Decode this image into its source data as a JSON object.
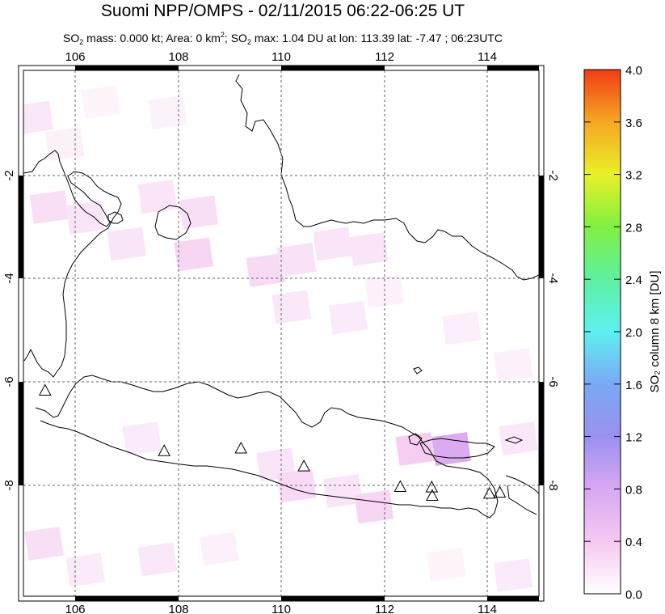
{
  "header": {
    "title": "Suomi NPP/OMPS - 02/11/2015 06:22-06:25 UT",
    "sub_a": "SO",
    "sub_b": "2",
    "sub_c": " mass: 0.000 kt; Area: 0 km",
    "sub_d": "2",
    "sub_e": "; SO",
    "sub_f": "2",
    "sub_g": " max: 1.04 DU at lon: 113.39 lat: -7.47 ; 06:23UTC"
  },
  "map": {
    "lon_range": [
      105,
      115
    ],
    "lat_range": [
      -10,
      0
    ],
    "lon_ticks": [
      "106",
      "108",
      "110",
      "112",
      "114"
    ],
    "lat_ticks_left": [
      "-2",
      "-4",
      "-6",
      "-8"
    ],
    "lat_ticks_right": [
      "-2",
      "-4",
      "-6",
      "-8"
    ],
    "volcanoes": [
      {
        "lon": 105.42,
        "lat": -6.1
      },
      {
        "lon": 107.73,
        "lat": -7.25
      },
      {
        "lon": 109.22,
        "lat": -7.2
      },
      {
        "lon": 110.44,
        "lat": -7.54
      },
      {
        "lon": 112.31,
        "lat": -7.93
      },
      {
        "lon": 112.92,
        "lat": -7.94
      },
      {
        "lon": 112.93,
        "lat": -8.1
      },
      {
        "lon": 114.04,
        "lat": -8.06
      },
      {
        "lon": 114.24,
        "lat": -8.04
      }
    ],
    "so2_cells": [
      {
        "lon": 105.2,
        "lat": -0.9,
        "v": 0.25
      },
      {
        "lon": 105.8,
        "lat": -1.4,
        "v": 0.15
      },
      {
        "lon": 106.5,
        "lat": -0.6,
        "v": 0.12
      },
      {
        "lon": 107.8,
        "lat": -0.8,
        "v": 0.14
      },
      {
        "lon": 105.5,
        "lat": -2.6,
        "v": 0.35
      },
      {
        "lon": 106.2,
        "lat": -2.8,
        "v": 0.28
      },
      {
        "lon": 107.6,
        "lat": -2.4,
        "v": 0.3
      },
      {
        "lon": 108.4,
        "lat": -2.7,
        "v": 0.35
      },
      {
        "lon": 108.3,
        "lat": -3.5,
        "v": 0.45
      },
      {
        "lon": 107.0,
        "lat": -3.3,
        "v": 0.28
      },
      {
        "lon": 109.7,
        "lat": -3.8,
        "v": 0.4
      },
      {
        "lon": 110.3,
        "lat": -3.6,
        "v": 0.32
      },
      {
        "lon": 111.0,
        "lat": -3.3,
        "v": 0.3
      },
      {
        "lon": 111.7,
        "lat": -3.4,
        "v": 0.28
      },
      {
        "lon": 110.2,
        "lat": -4.5,
        "v": 0.25
      },
      {
        "lon": 111.3,
        "lat": -4.7,
        "v": 0.22
      },
      {
        "lon": 112.0,
        "lat": -4.2,
        "v": 0.15
      },
      {
        "lon": 113.5,
        "lat": -4.9,
        "v": 0.18
      },
      {
        "lon": 114.5,
        "lat": -5.6,
        "v": 0.15
      },
      {
        "lon": 107.3,
        "lat": -7.0,
        "v": 0.22
      },
      {
        "lon": 109.9,
        "lat": -7.5,
        "v": 0.28
      },
      {
        "lon": 110.3,
        "lat": -7.9,
        "v": 0.4
      },
      {
        "lon": 111.2,
        "lat": -8.0,
        "v": 0.3
      },
      {
        "lon": 111.8,
        "lat": -8.3,
        "v": 0.45
      },
      {
        "lon": 112.6,
        "lat": -7.2,
        "v": 0.55
      },
      {
        "lon": 113.3,
        "lat": -7.2,
        "v": 0.95
      },
      {
        "lon": 114.6,
        "lat": -7.0,
        "v": 0.25
      },
      {
        "lon": 105.4,
        "lat": -9.0,
        "v": 0.35
      },
      {
        "lon": 106.2,
        "lat": -9.5,
        "v": 0.22
      },
      {
        "lon": 107.6,
        "lat": -9.3,
        "v": 0.25
      },
      {
        "lon": 108.8,
        "lat": -9.1,
        "v": 0.15
      },
      {
        "lon": 113.2,
        "lat": -9.4,
        "v": 0.12
      },
      {
        "lon": 114.5,
        "lat": -9.6,
        "v": 0.22
      }
    ]
  },
  "colorbar": {
    "ticks": [
      "0.0",
      "0.4",
      "0.8",
      "1.2",
      "1.6",
      "2.0",
      "2.4",
      "2.8",
      "3.2",
      "3.6",
      "4.0"
    ],
    "label": "SO₂ column 8 km [DU]",
    "min": 0.0,
    "max": 4.0,
    "colors": [
      "#ffffff",
      "#f6c8f2",
      "#c8a0f2",
      "#8c8cf0",
      "#6ec8f5",
      "#5ef0f0",
      "#5ef07a",
      "#a8f030",
      "#f0f028",
      "#f5a823",
      "#f03c14"
    ]
  }
}
